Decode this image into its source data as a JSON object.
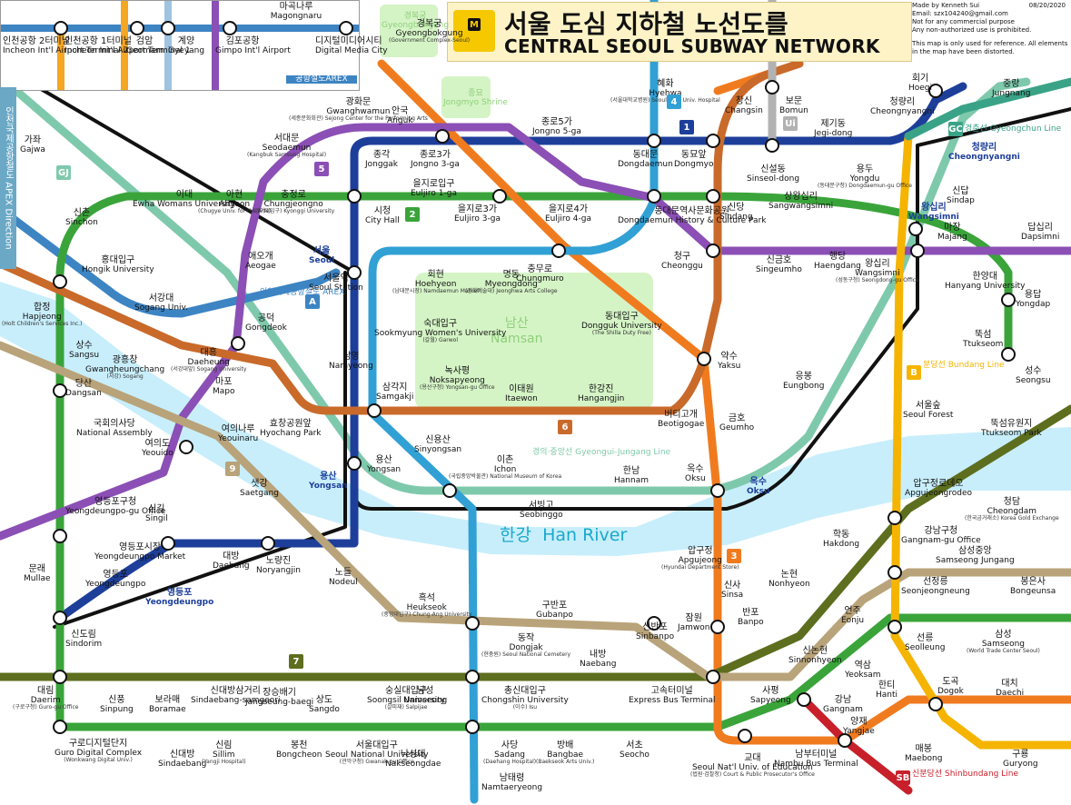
{
  "header": {
    "title_ko": "서울 도심 지하철 노선도를",
    "title_en": "CENTRAL SEOUL SUBWAY NETWORK",
    "icon_letter": "M",
    "made_by": "Made by Kenneth Sui",
    "email": "Email: szx104240@gmail.com",
    "note1": "Not for any commercial purpose",
    "note2": "Any non-authorized use is prohibited.",
    "date": "08/20/2020",
    "disclaimer": "This map is only used for reference. All elements in the map have been distorted."
  },
  "colors": {
    "line1": "#1d3f9a",
    "line2": "#3aa43a",
    "line3": "#f07b1f",
    "line4": "#31a0d4",
    "line5": "#8b4fb5",
    "line6": "#c96a2b",
    "line7": "#5d6e1e",
    "line9": "#b9a37a",
    "arex": "#3d84c3",
    "gyeongui": "#7ec9ac",
    "bundang": "#f5b400",
    "shinbundang": "#c8202b",
    "ui": "#b2b2b2",
    "gyeongchun": "#3aa387",
    "black": "#111111",
    "river": "#c8eefb",
    "park": "#d5f4c6"
  },
  "airport": {
    "stations": [
      {
        "ko": "인천공항\n2터미널",
        "en": "Incheon Int'l Airport Terminal 2"
      },
      {
        "ko": "인천공항\n1터미널",
        "en": "Incheon Int'l Airport Terminal 1"
      },
      {
        "ko": "검암",
        "en": "Geomam"
      },
      {
        "ko": "계양",
        "en": "Gyeyang"
      },
      {
        "ko": "김포공항",
        "en": "Gimpo Int'l Airport"
      },
      {
        "ko": "마곡나루",
        "en": "Magongnaru"
      },
      {
        "ko": "디지털미디어시티",
        "en": "Digital Media City"
      }
    ],
    "arex_label": "공항철도AREX",
    "apex_direction": "인천국제공항철도 APEX Direction"
  },
  "line_badges": [
    {
      "text": "1",
      "line": "line1"
    },
    {
      "text": "2",
      "line": "line2"
    },
    {
      "text": "3",
      "line": "line3"
    },
    {
      "text": "4",
      "line": "line4"
    },
    {
      "text": "5",
      "line": "line5"
    },
    {
      "text": "6",
      "line": "line6"
    },
    {
      "text": "7",
      "line": "line7"
    },
    {
      "text": "9",
      "line": "line9"
    },
    {
      "text": "A",
      "line": "arex"
    },
    {
      "text": "GJ",
      "line": "gyeongui"
    },
    {
      "text": "B",
      "line": "bundang"
    },
    {
      "text": "SB",
      "line": "shinbundang"
    },
    {
      "text": "Ui",
      "line": "ui"
    },
    {
      "text": "GC",
      "line": "gyeongchun"
    }
  ],
  "line_names": {
    "gyeongui": "경의·중앙선 Gyeongui-Jungang Line",
    "bundang": "분당선 Bundang Line",
    "shinbundang": "신분당선 Shinbundang Line",
    "gyeongchun": "경춘선 Gyeongchun Line",
    "arex": "인천국제공항철도 AREX"
  },
  "river": {
    "ko": "한강",
    "en": "Han River"
  },
  "parks": [
    {
      "ko": "남산",
      "en": "Namsan"
    },
    {
      "ko": "경복궁",
      "en": "Gyeongbokgung"
    },
    {
      "ko": "종묘",
      "en": "Jongmyo Shrine"
    }
  ],
  "stations": [
    {
      "ko": "경복궁",
      "en": "Gyeongbokgung",
      "sub": "(Government Complex-Seoul)"
    },
    {
      "ko": "안국",
      "en": "Anguk"
    },
    {
      "ko": "혜화",
      "en": "Hyehwa",
      "sub": "(서울대학교병원) Seoul Nat'l Univ. Hospital"
    },
    {
      "ko": "창신",
      "en": "Changsin"
    },
    {
      "ko": "보문",
      "en": "Bomun"
    },
    {
      "ko": "회기",
      "en": "Hoegi"
    },
    {
      "ko": "청량리",
      "en": "Cheongnyangni"
    },
    {
      "ko": "중랑",
      "en": "Jungnang"
    },
    {
      "ko": "광화문",
      "en": "Gwanghwamun",
      "sub": "(세종문화회관) Sejong Center for the Performing Arts"
    },
    {
      "ko": "종로5가",
      "en": "Jongno 5-ga"
    },
    {
      "ko": "동대문",
      "en": "Dongdaemun"
    },
    {
      "ko": "동묘앞",
      "en": "Dongmyo"
    },
    {
      "ko": "제기동",
      "en": "Jegi-dong"
    },
    {
      "ko": "가좌",
      "en": "Gajwa"
    },
    {
      "ko": "서대문",
      "en": "Seodaemun",
      "sub": "(Kangbuk Samsung Hospital)"
    },
    {
      "ko": "종각",
      "en": "Jonggak"
    },
    {
      "ko": "종로3가",
      "en": "Jongno 3-ga"
    },
    {
      "ko": "신설동",
      "en": "Sinseol-dong"
    },
    {
      "ko": "용두",
      "en": "Yongdu",
      "sub": "(동대문구청) Dongdaemun-gu Office"
    },
    {
      "ko": "신촌",
      "en": "Sinchon"
    },
    {
      "ko": "이대",
      "en": "Ewha Womans University"
    },
    {
      "ko": "아현",
      "en": "Ahyeon",
      "sub": "(Chugye Univ. for the Arts)"
    },
    {
      "ko": "충정로",
      "en": "Chungjeongno",
      "sub": "(경기대입구) Kyonggi University"
    },
    {
      "ko": "시청",
      "en": "City Hall"
    },
    {
      "ko": "을지로입구",
      "en": "Euljiro 1-ga"
    },
    {
      "ko": "을지로3가",
      "en": "Euljiro 3-ga"
    },
    {
      "ko": "을지로4가",
      "en": "Euljiro 4-ga"
    },
    {
      "ko": "동대문역사문화공원",
      "en": "Dongdaemun History & Culture Park"
    },
    {
      "ko": "신당",
      "en": "Sindang"
    },
    {
      "ko": "상왕십리",
      "en": "Sangwangsimni"
    },
    {
      "ko": "신답",
      "en": "Sindap"
    },
    {
      "ko": "홍대입구",
      "en": "Hongik University"
    },
    {
      "ko": "애오개",
      "en": "Aeogae"
    },
    {
      "ko": "서울역",
      "en": "Seoul Station"
    },
    {
      "ko": "회현",
      "en": "Hoehyeon",
      "sub": "(남대문시장) Namdaemun Market"
    },
    {
      "ko": "명동",
      "en": "Myeongdong",
      "sub": "(정화예술대) Jeonghwa Arts College"
    },
    {
      "ko": "충무로",
      "en": "Chungmuro"
    },
    {
      "ko": "청구",
      "en": "Cheonggu"
    },
    {
      "ko": "신금호",
      "en": "Singeumho"
    },
    {
      "ko": "행당",
      "en": "Haengdang"
    },
    {
      "ko": "왕십리",
      "en": "Wangsimni",
      "sub": "(성동구청) Seongdong-gu Office"
    },
    {
      "ko": "마장",
      "en": "Majang"
    },
    {
      "ko": "답십리",
      "en": "Dapsimni"
    },
    {
      "ko": "서강대",
      "en": "Sogang Univ."
    },
    {
      "ko": "합정",
      "en": "Hapjeong",
      "sub": "(Holt Children's Services Inc.)"
    },
    {
      "ko": "공덕",
      "en": "Gongdeok"
    },
    {
      "ko": "숙대입구",
      "en": "Sookmyung Women's University",
      "sub": "(갈월) Garwol"
    },
    {
      "ko": "동대입구",
      "en": "Dongguk University",
      "sub": "(The Shilla Duty Free)"
    },
    {
      "ko": "한양대",
      "en": "Hanyang University"
    },
    {
      "ko": "용답",
      "en": "Yongdap"
    },
    {
      "ko": "상수",
      "en": "Sangsu"
    },
    {
      "ko": "광흥창",
      "en": "Gwangheungchang",
      "sub": "(서강) Sogang"
    },
    {
      "ko": "대흥",
      "en": "Daeheung",
      "sub": "(서강대앞) Sogang University"
    },
    {
      "ko": "남영",
      "en": "Namyeong"
    },
    {
      "ko": "약수",
      "en": "Yaksu"
    },
    {
      "ko": "뚝섬",
      "en": "Ttukseom"
    },
    {
      "ko": "성수",
      "en": "Seongsu"
    },
    {
      "ko": "당산",
      "en": "Dangsan"
    },
    {
      "ko": "마포",
      "en": "Mapo"
    },
    {
      "ko": "삼각지",
      "en": "Samgakji"
    },
    {
      "ko": "녹사평",
      "en": "Noksapyeong",
      "sub": "(용산구청) Yongsan-gu Office"
    },
    {
      "ko": "이태원",
      "en": "Itaewon"
    },
    {
      "ko": "한강진",
      "en": "Hangangjin"
    },
    {
      "ko": "버티고개",
      "en": "Beotigogae"
    },
    {
      "ko": "응봉",
      "en": "Eungbong"
    },
    {
      "ko": "국회의사당",
      "en": "National Assembly"
    },
    {
      "ko": "여의나루",
      "en": "Yeouinaru"
    },
    {
      "ko": "효창공원앞",
      "en": "Hyochang Park"
    },
    {
      "ko": "금호",
      "en": "Geumho"
    },
    {
      "ko": "서울숲",
      "en": "Seoul Forest"
    },
    {
      "ko": "여의도",
      "en": "Yeouido"
    },
    {
      "ko": "신용산",
      "en": "Sinyongsan"
    },
    {
      "ko": "뚝섬유원지",
      "en": "Ttukseom Park"
    },
    {
      "ko": "용산",
      "en": "Yongsan"
    },
    {
      "ko": "이촌",
      "en": "Ichon",
      "sub": "(국립중앙박물관) National Museum of Korea"
    },
    {
      "ko": "한남",
      "en": "Hannam"
    },
    {
      "ko": "옥수",
      "en": "Oksu"
    },
    {
      "ko": "샛강",
      "en": "Saetgang"
    },
    {
      "ko": "압구정로데오",
      "en": "Apgujeongrodeo"
    },
    {
      "ko": "영등포구청",
      "en": "Yeongdeungpo-gu Office"
    },
    {
      "ko": "신길",
      "en": "Singil"
    },
    {
      "ko": "서빙고",
      "en": "Seobinggo"
    },
    {
      "ko": "청담",
      "en": "Cheongdam",
      "sub": "(한국금거래소) Korea Gold Exchange"
    },
    {
      "ko": "강남구청",
      "en": "Gangnam-gu Office"
    },
    {
      "ko": "학동",
      "en": "Hakdong"
    },
    {
      "ko": "영등포시장",
      "en": "Yeongdeungpo Market"
    },
    {
      "ko": "대방",
      "en": "Daebang"
    },
    {
      "ko": "노량진",
      "en": "Noryangjin"
    },
    {
      "ko": "압구정",
      "en": "Apgujeong",
      "sub": "(Hyundai Department Store)"
    },
    {
      "ko": "삼성중앙",
      "en": "Samseong Jungang"
    },
    {
      "ko": "문래",
      "en": "Mullae"
    },
    {
      "ko": "영등포",
      "en": "Yeongdeungpo"
    },
    {
      "ko": "노들",
      "en": "Nodeul"
    },
    {
      "ko": "신사",
      "en": "Sinsa"
    },
    {
      "ko": "논현",
      "en": "Nonhyeon"
    },
    {
      "ko": "선정릉",
      "en": "Seonjeongneung"
    },
    {
      "ko": "봉은사",
      "en": "Bongeunsa"
    },
    {
      "ko": "흑석",
      "en": "Heukseok",
      "sub": "(중앙대입구) Chung-Ang University"
    },
    {
      "ko": "구반포",
      "en": "Gubanpo"
    },
    {
      "ko": "반포",
      "en": "Banpo"
    },
    {
      "ko": "언주",
      "en": "Eonju"
    },
    {
      "ko": "신도림",
      "en": "Sindorim"
    },
    {
      "ko": "동작",
      "en": "Dongjak",
      "sub": "(현충원) Seoul National Cemetery"
    },
    {
      "ko": "신반포",
      "en": "Sinbanpo"
    },
    {
      "ko": "잠원",
      "en": "Jamwon"
    },
    {
      "ko": "신논현",
      "en": "Sinnonhyeon"
    },
    {
      "ko": "선릉",
      "en": "Seolleung"
    },
    {
      "ko": "삼성",
      "en": "Samseong",
      "sub": "(World Trade Center Seoul)"
    },
    {
      "ko": "내방",
      "en": "Naebang"
    },
    {
      "ko": "역삼",
      "en": "Yeoksam"
    },
    {
      "ko": "대림",
      "en": "Daerim",
      "sub": "(구로구청) Guro-gu Office"
    },
    {
      "ko": "신풍",
      "en": "Sinpung"
    },
    {
      "ko": "보라매",
      "en": "Boramae"
    },
    {
      "ko": "신대방삼거리",
      "en": "Sindaebang-samgeori"
    },
    {
      "ko": "장승배기",
      "en": "Jangseung-baegi"
    },
    {
      "ko": "상도",
      "en": "Sangdo"
    },
    {
      "ko": "숭실대입구",
      "en": "Soongsil University",
      "sub": "(살피재) Salpijae"
    },
    {
      "ko": "남성",
      "en": "Namseong"
    },
    {
      "ko": "총신대입구",
      "en": "Chongshin University",
      "sub": "(이수) Isu"
    },
    {
      "ko": "고속터미널",
      "en": "Express Bus Terminal"
    },
    {
      "ko": "사평",
      "en": "Sapyeong"
    },
    {
      "ko": "한티",
      "en": "Hanti"
    },
    {
      "ko": "도곡",
      "en": "Dogok"
    },
    {
      "ko": "대치",
      "en": "Daechi"
    },
    {
      "ko": "강남",
      "en": "Gangnam"
    },
    {
      "ko": "양재",
      "en": "Yangjae"
    },
    {
      "ko": "구로디지털단지",
      "en": "Guro Digital Complex",
      "sub": "(Wonkwang Digital Univ.)"
    },
    {
      "ko": "신대방",
      "en": "Sindaebang"
    },
    {
      "ko": "신림",
      "en": "Sillim",
      "sub": "(Yangji Hospital)"
    },
    {
      "ko": "봉천",
      "en": "Bongcheon"
    },
    {
      "ko": "서울대입구",
      "en": "Seoul National University",
      "sub": "(관악구청) Gwanak-gu Office"
    },
    {
      "ko": "낙성대",
      "en": "Nakseongdae"
    },
    {
      "ko": "사당",
      "en": "Sadang",
      "sub": "(Daehang Hospital)"
    },
    {
      "ko": "방배",
      "en": "Bangbae",
      "sub": "(Baekseok Arts Univ.)"
    },
    {
      "ko": "서초",
      "en": "Seocho"
    },
    {
      "ko": "교대",
      "en": "Seoul Nat'l Univ. of Education",
      "sub": "(법원·검찰청) Court & Public Prosecutor's Office"
    },
    {
      "ko": "남부터미널",
      "en": "Nambu Bus Terminal"
    },
    {
      "ko": "매봉",
      "en": "Maebong"
    },
    {
      "ko": "구룡",
      "en": "Guryong"
    },
    {
      "ko": "남태령",
      "en": "Namtaeryeong"
    }
  ],
  "major_stations": [
    {
      "ko": "서울",
      "en": "Seoul"
    },
    {
      "ko": "용산",
      "en": "Yongsan"
    },
    {
      "ko": "옥수",
      "en": "Oksu"
    },
    {
      "ko": "영등포",
      "en": "Yeongdeungpo"
    },
    {
      "ko": "청량리",
      "en": "Cheongnyangni"
    },
    {
      "ko": "왕십리",
      "en": "Wangsimni"
    }
  ]
}
